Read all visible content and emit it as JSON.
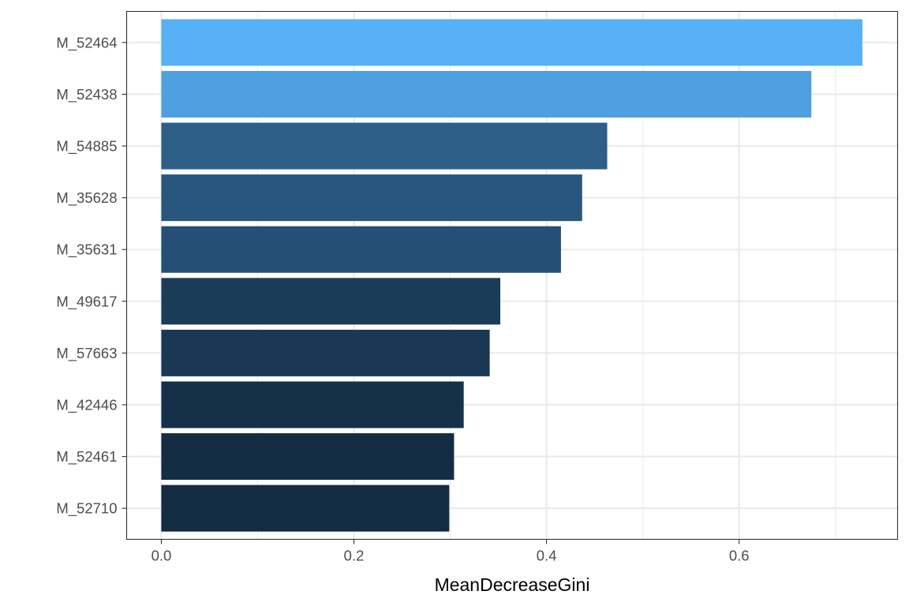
{
  "chart_data": {
    "type": "bar",
    "orientation": "horizontal",
    "title": "",
    "xlabel": "MeanDecreaseGini",
    "ylabel": "",
    "xlim": [
      -0.036,
      0.7645
    ],
    "x_ticks": [
      0.0,
      0.2,
      0.4,
      0.6
    ],
    "x_tick_labels": [
      "0.0",
      "0.2",
      "0.4",
      "0.6"
    ],
    "grid": true,
    "legend": "none",
    "color_scale": {
      "low": "#132B43",
      "high": "#56B1F7"
    },
    "bars": [
      {
        "category": "M_52464",
        "value": 0.728
      },
      {
        "category": "M_52438",
        "value": 0.675
      },
      {
        "category": "M_54885",
        "value": 0.463
      },
      {
        "category": "M_35628",
        "value": 0.437
      },
      {
        "category": "M_35631",
        "value": 0.415
      },
      {
        "category": "M_49617",
        "value": 0.352
      },
      {
        "category": "M_57663",
        "value": 0.341
      },
      {
        "category": "M_42446",
        "value": 0.314
      },
      {
        "category": "M_52461",
        "value": 0.304
      },
      {
        "category": "M_52710",
        "value": 0.299
      }
    ]
  }
}
